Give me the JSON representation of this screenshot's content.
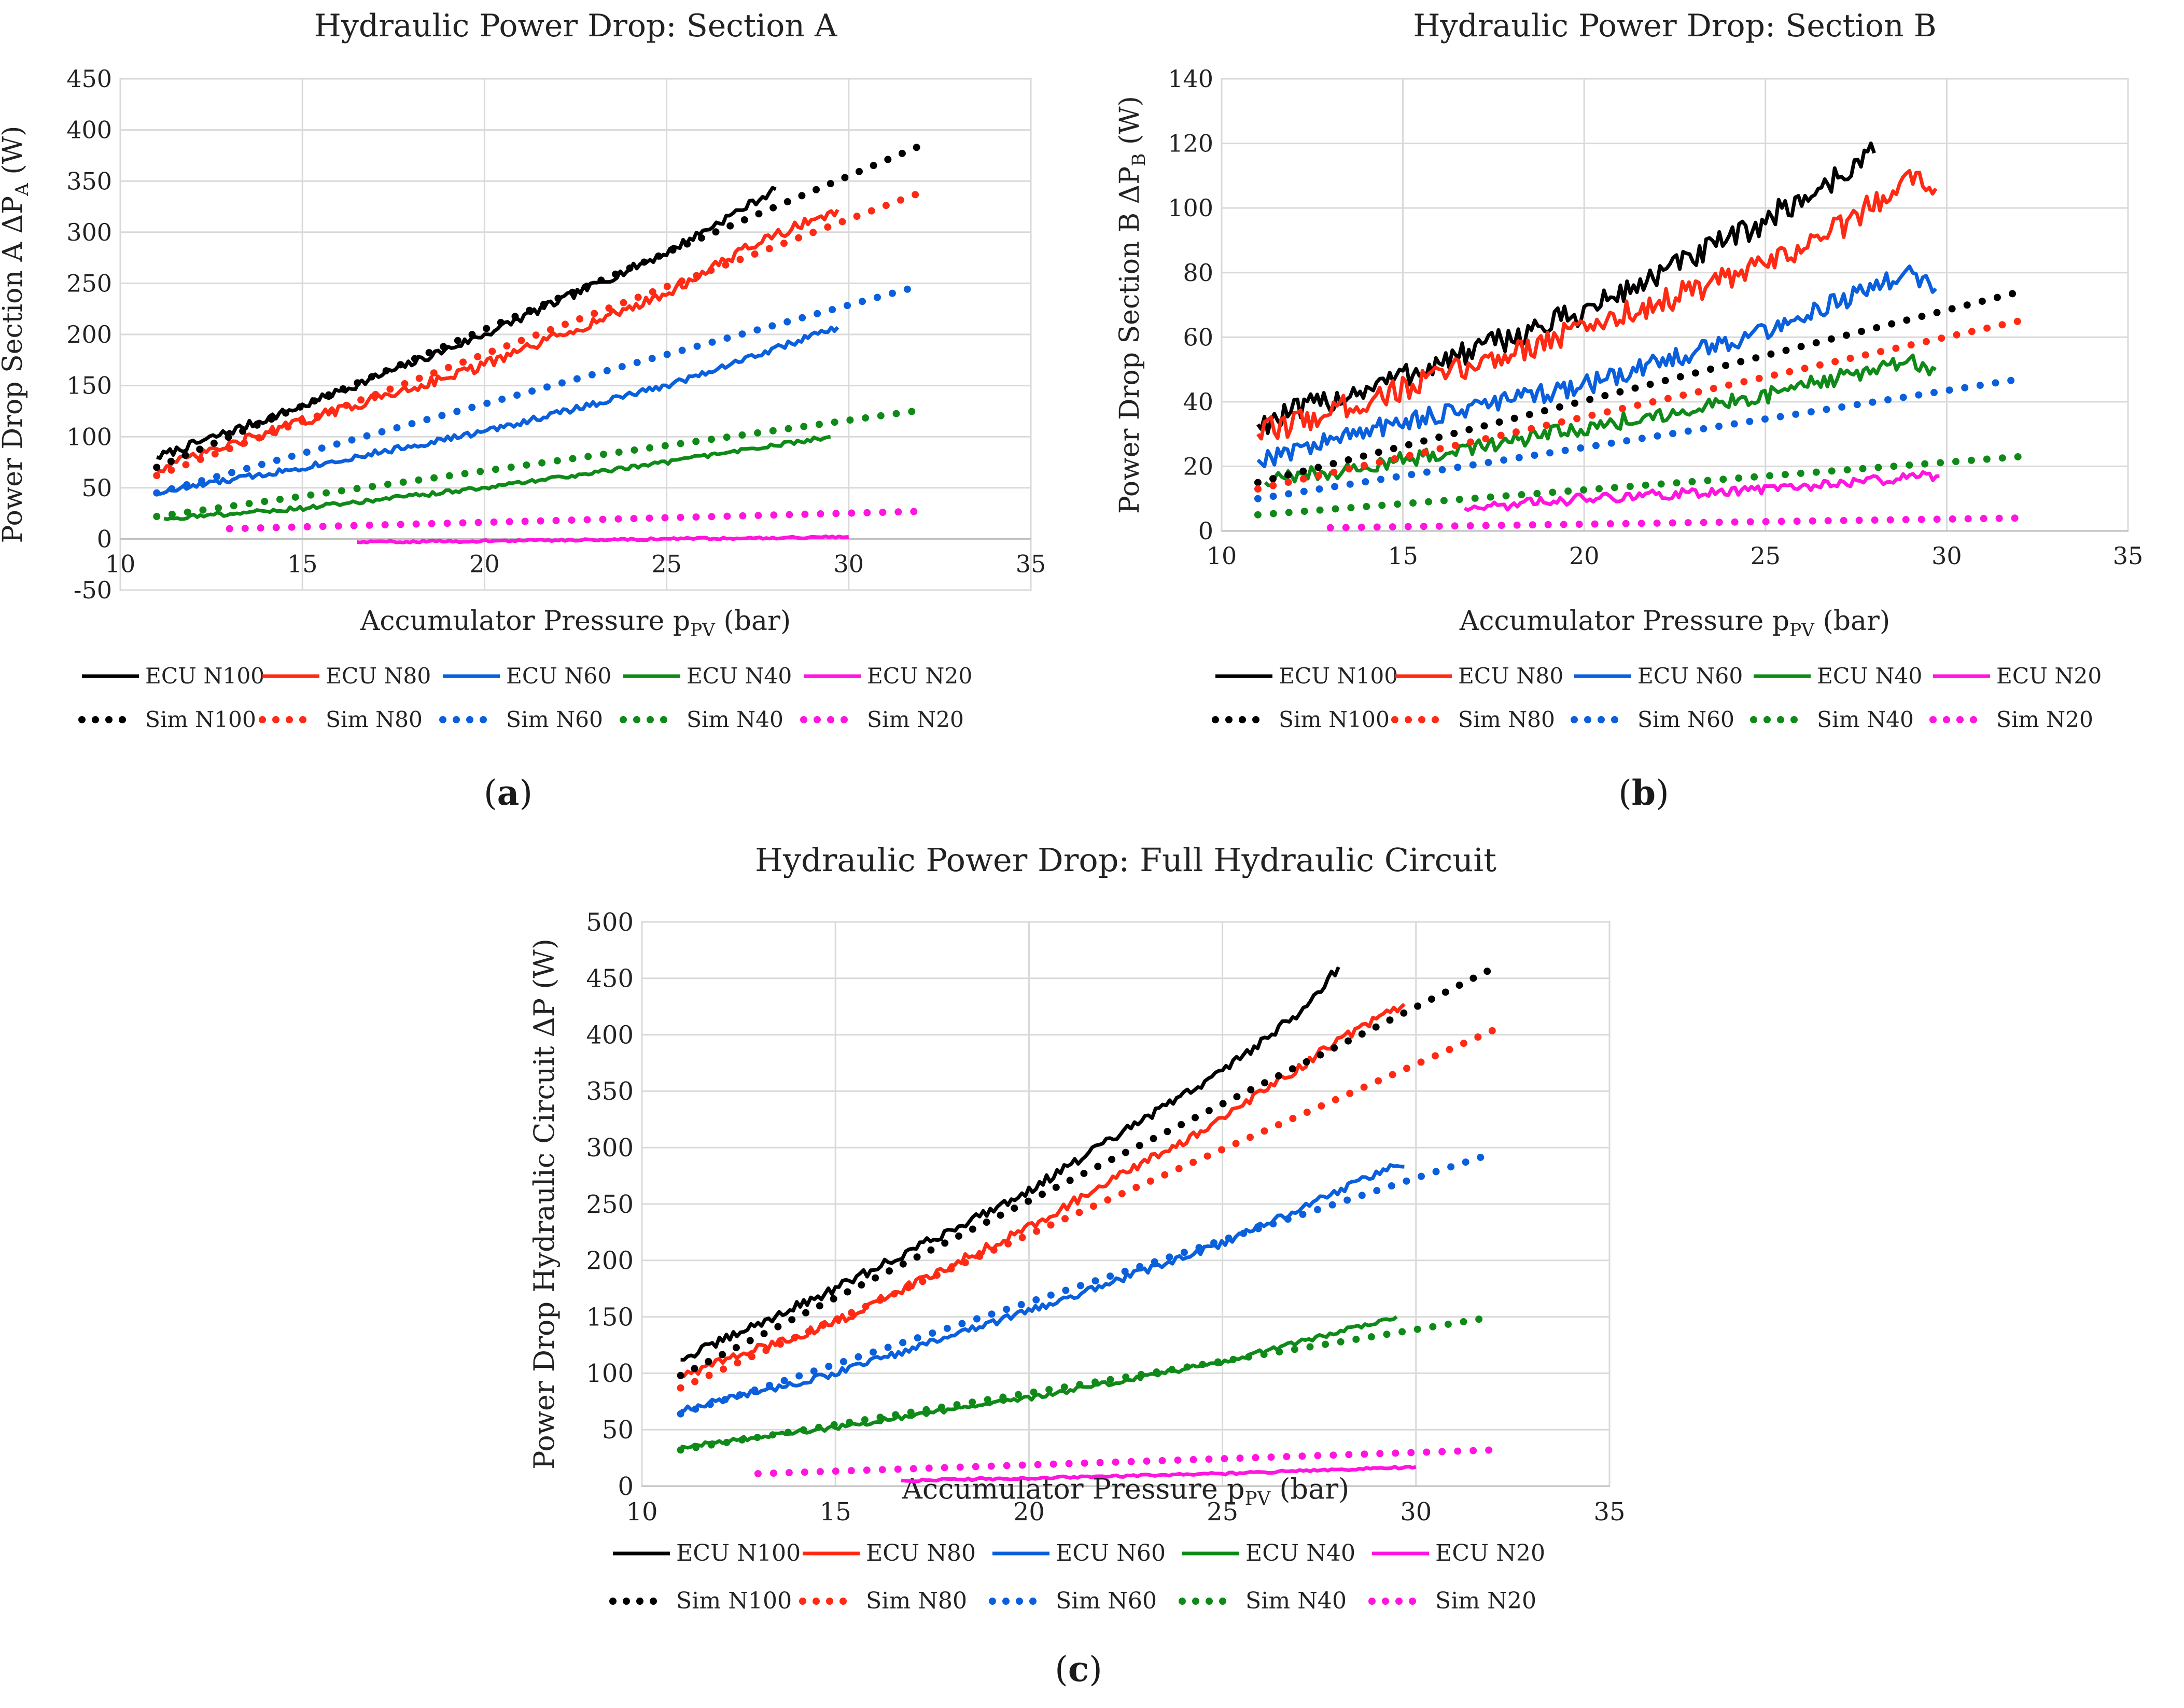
{
  "labels": {
    "a": "a",
    "b": "b",
    "c": "c"
  },
  "chart_data": [
    {
      "type": "line",
      "id": "a",
      "title": "Hydraulic Power Drop: Section A",
      "xlabel": {
        "main": "Accumulator Pressure p",
        "sub": "PV",
        "unit": " (bar)"
      },
      "ylabel": {
        "main": "Power Drop Section A ΔP",
        "sub": "A",
        "unit": " (W)"
      },
      "xlim": [
        10,
        35
      ],
      "xticks": [
        10,
        15,
        20,
        25,
        30,
        35
      ],
      "ylim": [
        -50,
        450
      ],
      "yticks": [
        -50,
        0,
        50,
        100,
        150,
        200,
        250,
        300,
        350,
        400,
        450
      ],
      "grid": true,
      "legend": "bottom",
      "series": [
        {
          "name": "ECU N100",
          "style": "solid",
          "color": "#000000",
          "x": [
            11,
            15,
            20,
            25,
            28
          ],
          "y": [
            80,
            130,
            200,
            280,
            342
          ],
          "noise": 4
        },
        {
          "name": "ECU N80",
          "style": "solid",
          "color": "#ff2a14",
          "x": [
            11,
            15,
            20,
            25,
            27.5,
            29.7
          ],
          "y": [
            68,
            115,
            170,
            240,
            290,
            322
          ],
          "noise": 5
        },
        {
          "name": "ECU N60",
          "style": "solid",
          "color": "#0a5fdc",
          "x": [
            11,
            15,
            20,
            25,
            29.7
          ],
          "y": [
            45,
            70,
            105,
            150,
            207
          ],
          "noise": 3
        },
        {
          "name": "ECU N40",
          "style": "solid",
          "color": "#0f8a18",
          "x": [
            11.2,
            15,
            20,
            25,
            29.5
          ],
          "y": [
            20,
            30,
            50,
            75,
            100
          ],
          "noise": 2
        },
        {
          "name": "ECU N20",
          "style": "solid",
          "color": "#ff14e0",
          "x": [
            16.5,
            20,
            25,
            30
          ],
          "y": [
            -3,
            -2,
            0,
            2
          ],
          "noise": 1
        },
        {
          "name": "Sim N100",
          "style": "dotted",
          "color": "#000000",
          "x": [
            11,
            32
          ],
          "y": [
            70,
            385
          ]
        },
        {
          "name": "Sim N80",
          "style": "dotted",
          "color": "#ff2a14",
          "x": [
            11,
            32
          ],
          "y": [
            62,
            339
          ]
        },
        {
          "name": "Sim N60",
          "style": "dotted",
          "color": "#0a5fdc",
          "x": [
            11,
            32
          ],
          "y": [
            45,
            248
          ]
        },
        {
          "name": "Sim N40",
          "style": "dotted",
          "color": "#0f8a18",
          "x": [
            11,
            32
          ],
          "y": [
            22,
            126
          ]
        },
        {
          "name": "Sim N20",
          "style": "dotted",
          "color": "#ff14e0",
          "x": [
            13,
            32
          ],
          "y": [
            10,
            27
          ]
        }
      ]
    },
    {
      "type": "line",
      "id": "b",
      "title": "Hydraulic Power Drop: Section B",
      "xlabel": {
        "main": "Accumulator Pressure p",
        "sub": "PV",
        "unit": " (bar)"
      },
      "ylabel": {
        "main": "Power Drop Section B ΔP",
        "sub": "B",
        "unit": " (W)"
      },
      "xlim": [
        10,
        35
      ],
      "xticks": [
        10,
        15,
        20,
        25,
        30,
        35
      ],
      "ylim": [
        0,
        140
      ],
      "yticks": [
        0,
        20,
        40,
        60,
        80,
        100,
        120,
        140
      ],
      "grid": true,
      "legend": "bottom",
      "series": [
        {
          "name": "ECU N100",
          "style": "solid",
          "color": "#000000",
          "x": [
            11,
            15,
            20,
            24.5,
            26.5,
            28
          ],
          "y": [
            33,
            48,
            68,
            93,
            106,
            117
          ],
          "noise": 4
        },
        {
          "name": "ECU N80",
          "style": "solid",
          "color": "#ff2a14",
          "x": [
            11,
            15,
            20,
            25,
            27.5,
            29,
            29.7
          ],
          "y": [
            30,
            44,
            63,
            82,
            97,
            111,
            106
          ],
          "noise": 4
        },
        {
          "name": "ECU N60",
          "style": "solid",
          "color": "#0a5fdc",
          "x": [
            11,
            15,
            20,
            25,
            29,
            29.7
          ],
          "y": [
            22,
            34,
            45,
            62,
            80,
            75
          ],
          "noise": 3
        },
        {
          "name": "ECU N40",
          "style": "solid",
          "color": "#0f8a18",
          "x": [
            11.2,
            15,
            20,
            25,
            29,
            29.7
          ],
          "y": [
            15,
            22,
            32,
            42,
            53,
            50
          ],
          "noise": 2.5
        },
        {
          "name": "ECU N20",
          "style": "solid",
          "color": "#ff14e0",
          "x": [
            16.7,
            20,
            25,
            29.5,
            29.8
          ],
          "y": [
            7,
            10,
            13,
            17,
            17
          ],
          "noise": 1.5
        },
        {
          "name": "Sim N100",
          "style": "dotted",
          "color": "#000000",
          "x": [
            11,
            32
          ],
          "y": [
            15,
            74
          ]
        },
        {
          "name": "Sim N80",
          "style": "dotted",
          "color": "#ff2a14",
          "x": [
            11,
            32
          ],
          "y": [
            13,
            65
          ]
        },
        {
          "name": "Sim N60",
          "style": "dotted",
          "color": "#0a5fdc",
          "x": [
            11,
            32
          ],
          "y": [
            10,
            47
          ]
        },
        {
          "name": "Sim N40",
          "style": "dotted",
          "color": "#0f8a18",
          "x": [
            11,
            32
          ],
          "y": [
            5,
            23
          ]
        },
        {
          "name": "Sim N20",
          "style": "dotted",
          "color": "#ff14e0",
          "x": [
            13,
            32
          ],
          "y": [
            1,
            4
          ]
        }
      ]
    },
    {
      "type": "line",
      "id": "c",
      "title": "Hydraulic Power Drop: Full Hydraulic Circuit",
      "xlabel": {
        "main": "Accumulator Pressure p",
        "sub": "PV",
        "unit": " (bar)"
      },
      "ylabel": {
        "main": "Power Drop Hydraulic Circuit ΔP",
        "sub": "",
        "unit": " (W)"
      },
      "xlim": [
        10,
        35
      ],
      "xticks": [
        10,
        15,
        20,
        25,
        30,
        35
      ],
      "ylim": [
        0,
        500
      ],
      "yticks": [
        0,
        50,
        100,
        150,
        200,
        250,
        300,
        350,
        400,
        450,
        500
      ],
      "grid": true,
      "legend": "bottom",
      "series": [
        {
          "name": "ECU N100",
          "style": "solid",
          "color": "#000000",
          "x": [
            11,
            15,
            20,
            25,
            27,
            28
          ],
          "y": [
            112,
            175,
            262,
            368,
            420,
            460
          ],
          "noise": 4
        },
        {
          "name": "ECU N80",
          "style": "solid",
          "color": "#ff2a14",
          "x": [
            11,
            15,
            20,
            25,
            28,
            29.7
          ],
          "y": [
            98,
            145,
            230,
            325,
            395,
            427
          ],
          "noise": 4
        },
        {
          "name": "ECU N60",
          "style": "solid",
          "color": "#0a5fdc",
          "x": [
            11,
            15,
            20,
            25,
            29.5,
            29.7
          ],
          "y": [
            67,
            100,
            155,
            215,
            285,
            283
          ],
          "noise": 3
        },
        {
          "name": "ECU N40",
          "style": "solid",
          "color": "#0f8a18",
          "x": [
            11,
            15,
            20,
            25,
            29.5
          ],
          "y": [
            35,
            52,
            78,
            110,
            150
          ],
          "noise": 2
        },
        {
          "name": "ECU N20",
          "style": "solid",
          "color": "#ff14e0",
          "x": [
            16.7,
            20,
            25,
            30
          ],
          "y": [
            5,
            7,
            11,
            17
          ],
          "noise": 1
        },
        {
          "name": "Sim N100",
          "style": "dotted",
          "color": "#000000",
          "x": [
            11,
            32
          ],
          "y": [
            98,
            459
          ]
        },
        {
          "name": "Sim N80",
          "style": "dotted",
          "color": "#ff2a14",
          "x": [
            11,
            32
          ],
          "y": [
            87,
            404
          ]
        },
        {
          "name": "Sim N60",
          "style": "dotted",
          "color": "#0a5fdc",
          "x": [
            11,
            32
          ],
          "y": [
            64,
            295
          ]
        },
        {
          "name": "Sim N40",
          "style": "dotted",
          "color": "#0f8a18",
          "x": [
            11,
            32
          ],
          "y": [
            32,
            150
          ]
        },
        {
          "name": "Sim N20",
          "style": "dotted",
          "color": "#ff14e0",
          "x": [
            13,
            32
          ],
          "y": [
            11,
            32
          ]
        }
      ]
    }
  ]
}
